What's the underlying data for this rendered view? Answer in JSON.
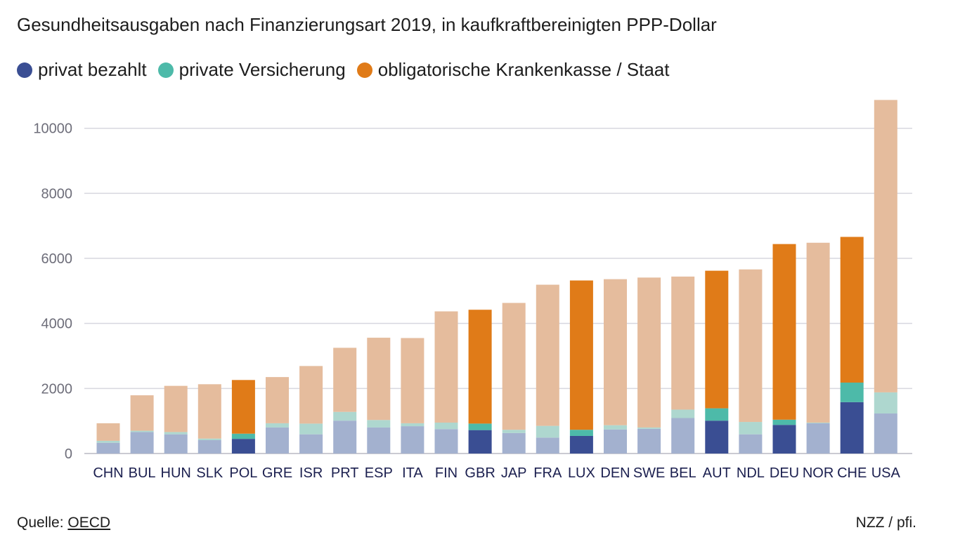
{
  "chart_data": {
    "type": "bar",
    "stacked": true,
    "title": "Gesundheitsausgaben nach Finanzierungsart 2019, in kaufkraftbereinigten PPP-Dollar",
    "ylim": [
      0,
      10900
    ],
    "yticks": [
      0,
      2000,
      4000,
      6000,
      8000,
      10000
    ],
    "grid": true,
    "legend_position": "top-left",
    "highlighted": [
      "POL",
      "GBR",
      "LUX",
      "AUT",
      "DEU",
      "CHE"
    ],
    "categories": [
      "CHN",
      "BUL",
      "HUN",
      "SLK",
      "POL",
      "GRE",
      "ISR",
      "PRT",
      "ESP",
      "ITA",
      "FIN",
      "GBR",
      "JAP",
      "FRA",
      "LUX",
      "DEN",
      "SWE",
      "BEL",
      "AUT",
      "NDL",
      "DEU",
      "NOR",
      "CHE",
      "USA"
    ],
    "series": [
      {
        "name": "privat bezahlt",
        "color": "#3a4e93",
        "muted_color": "#a3b1cf",
        "values": [
          330,
          660,
          590,
          410,
          450,
          800,
          590,
          1010,
          800,
          840,
          750,
          720,
          630,
          490,
          540,
          740,
          760,
          1090,
          1010,
          590,
          880,
          930,
          1580,
          1230
        ]
      },
      {
        "name": "private Versicherung",
        "color": "#4dbaa9",
        "muted_color": "#aed7cf",
        "values": [
          60,
          40,
          70,
          50,
          160,
          130,
          330,
          270,
          230,
          90,
          200,
          200,
          100,
          360,
          190,
          130,
          40,
          260,
          380,
          380,
          160,
          20,
          600,
          650
        ]
      },
      {
        "name": "obligatorische Krankenkasse / Staat",
        "color": "#e07b18",
        "muted_color": "#e5bc9d",
        "values": [
          540,
          1090,
          1420,
          1670,
          1650,
          1420,
          1770,
          1970,
          2530,
          2620,
          3420,
          3500,
          3900,
          4340,
          4590,
          4490,
          4610,
          4090,
          4230,
          4690,
          5400,
          5530,
          4480,
          8990
        ]
      }
    ]
  },
  "footer": {
    "source_prefix": "Quelle: ",
    "source_link": "OECD",
    "credit": "NZZ / pfi."
  }
}
